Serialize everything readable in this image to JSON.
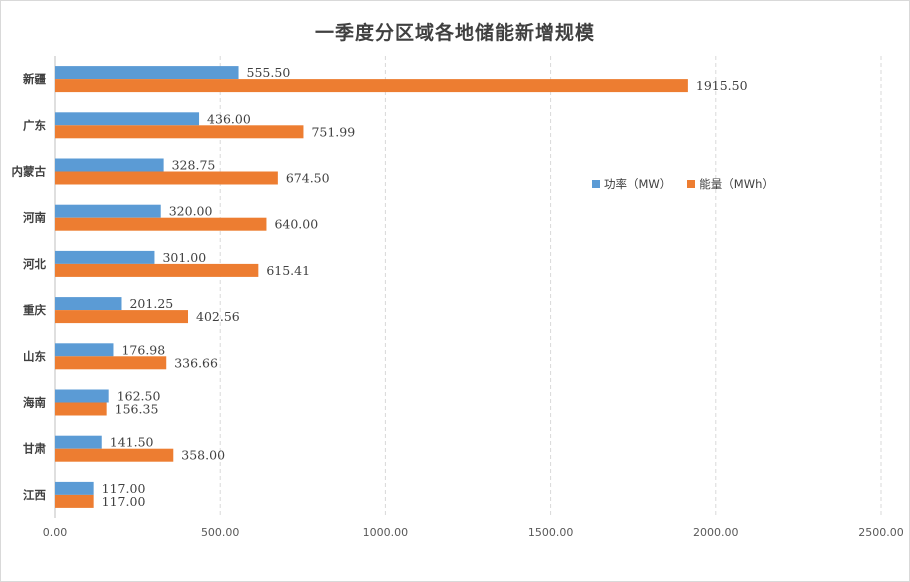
{
  "chart_data": {
    "type": "bar",
    "orientation": "horizontal",
    "title": "一季度分区域各地储能新增规模",
    "categories": [
      "新疆",
      "广东",
      "内蒙古",
      "河南",
      "河北",
      "重庆",
      "山东",
      "海南",
      "甘肃",
      "江西"
    ],
    "series": [
      {
        "name": "功率（MW）",
        "color": "#5b9bd5",
        "values": [
          555.5,
          436.0,
          328.75,
          320.0,
          301.0,
          201.25,
          176.98,
          162.5,
          141.5,
          117.0
        ],
        "labels": [
          "555.50",
          "436.00",
          "328.75",
          "320.00",
          "301.00",
          "201.25",
          "176.98",
          "162.50",
          "141.50",
          "117.00"
        ]
      },
      {
        "name": "能量（MWh）",
        "color": "#ed7d31",
        "values": [
          1915.5,
          751.99,
          674.5,
          640.0,
          615.41,
          402.56,
          336.66,
          156.35,
          358.0,
          117.0
        ],
        "labels": [
          "1915.50",
          "751.99",
          "674.50",
          "640.00",
          "615.41",
          "402.56",
          "336.66",
          "156.35",
          "358.00",
          "117.00"
        ]
      }
    ],
    "xlim": [
      0,
      2500
    ],
    "xticks": [
      "0.00",
      "500.00",
      "1000.00",
      "1500.00",
      "2000.00",
      "2500.00"
    ],
    "grid": "vertical-dashed",
    "legend_position": "right"
  }
}
